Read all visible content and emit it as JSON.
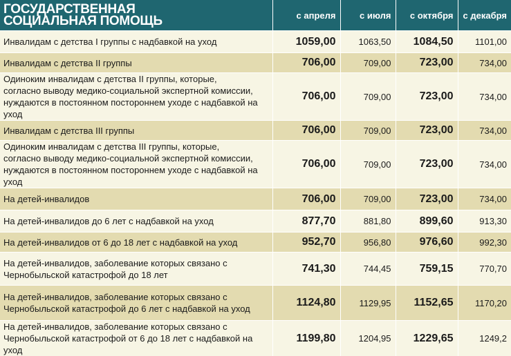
{
  "header": {
    "title_line1": "Государственная",
    "title_line2": "социальная помощь",
    "columns": [
      "с апреля",
      "с июля",
      "с октября",
      "с декабря"
    ]
  },
  "rows": [
    {
      "label": "Инвалидам с детства I группы с надбавкой на уход",
      "values": [
        "1059,00",
        "1063,50",
        "1084,50",
        "1101,00"
      ]
    },
    {
      "label": "Инвалидам с детства II группы",
      "values": [
        "706,00",
        "709,00",
        "723,00",
        "734,00"
      ]
    },
    {
      "label": "Одиноким инвалидам с детства II группы, которые,\nсогласно выводу медико-социальной экспертной комиссии,\nнуждаются в постоянном постороннем уходе с надбавкой на уход",
      "values": [
        "706,00",
        "709,00",
        "723,00",
        "734,00"
      ]
    },
    {
      "label": "Инвалидам с детства III группы",
      "values": [
        "706,00",
        "709,00",
        "723,00",
        "734,00"
      ]
    },
    {
      "label": "Одиноким инвалидам с детства III группы, которые,\nсогласно выводу медико-социальной экспертной комиссии,\nнуждаются в постоянном постороннем уходе с надбавкой на уход",
      "values": [
        "706,00",
        "709,00",
        "723,00",
        "734,00"
      ]
    },
    {
      "label": "На детей-инвалидов",
      "values": [
        "706,00",
        "709,00",
        "723,00",
        "734,00"
      ]
    },
    {
      "label": "На детей-инвалидов до 6 лет с надбавкой на уход",
      "values": [
        "877,70",
        "881,80",
        "899,60",
        "913,30"
      ]
    },
    {
      "label": "На детей-инвалидов от 6 до 18 лет с надбавкой на уход",
      "values": [
        "952,70",
        "956,80",
        "976,60",
        "992,30"
      ]
    },
    {
      "label": "На детей-инвалидов, заболевание которых связано с\nЧернобыльской катастрофой до 18 лет",
      "values": [
        "741,30",
        "744,45",
        "759,15",
        "770,70"
      ]
    },
    {
      "label": "На детей-инвалидов, заболевание которых связано с\nЧернобыльской катастрофой до 6 лет с надбавкой на уход",
      "values": [
        "1124,80",
        "1129,95",
        "1152,65",
        "1170,20"
      ]
    },
    {
      "label": "На детей-инвалидов, заболевание которых связано с\nЧернобыльской катастрофой от 6 до 18 лет с надбавкой на уход",
      "values": [
        "1199,80",
        "1204,95",
        "1229,65",
        "1249,2"
      ]
    }
  ]
}
